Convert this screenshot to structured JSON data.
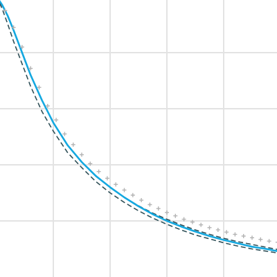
{
  "chart_data": {
    "type": "line",
    "title": "",
    "xlabel": "",
    "ylabel": "",
    "grid": true,
    "xlim": [
      0,
      5
    ],
    "ylim": [
      0,
      5
    ],
    "colors": {
      "grid": "#e3e3e3",
      "model": "#14a8e0",
      "bounds": "#2f4f57",
      "observed": "#b3b3b3"
    },
    "series": [
      {
        "role": "upper-bound",
        "style": "dashed",
        "x": [
          0.0,
          0.15,
          0.3,
          0.5,
          0.75,
          1.0,
          1.25,
          1.5,
          1.75,
          2.0,
          2.25,
          2.5,
          2.75,
          3.0,
          3.25,
          3.5,
          3.75,
          4.0,
          4.25,
          4.5,
          4.75,
          5.0
        ],
        "y": [
          5.0,
          4.75,
          4.4,
          3.85,
          3.25,
          2.75,
          2.35,
          2.05,
          1.8,
          1.6,
          1.42,
          1.27,
          1.14,
          1.03,
          0.93,
          0.84,
          0.76,
          0.69,
          0.63,
          0.58,
          0.53,
          0.48
        ]
      },
      {
        "role": "model",
        "style": "solid",
        "x": [
          0.0,
          0.1,
          0.2,
          0.3,
          0.45,
          0.6,
          0.8,
          1.0,
          1.25,
          1.5,
          1.75,
          2.0,
          2.25,
          2.5,
          2.75,
          3.0,
          3.25,
          3.5,
          3.75,
          4.0,
          4.25,
          4.5,
          4.75,
          5.0
        ],
        "y": [
          5.0,
          4.85,
          4.65,
          4.4,
          4.0,
          3.6,
          3.15,
          2.75,
          2.35,
          2.05,
          1.8,
          1.6,
          1.42,
          1.26,
          1.12,
          1.0,
          0.9,
          0.81,
          0.73,
          0.66,
          0.6,
          0.54,
          0.5,
          0.45
        ]
      },
      {
        "role": "lower-bound",
        "style": "dashed",
        "x": [
          0.0,
          0.1,
          0.2,
          0.3,
          0.45,
          0.6,
          0.8,
          1.0,
          1.25,
          1.5,
          1.75,
          2.0,
          2.25,
          2.5,
          2.75,
          3.0,
          3.25,
          3.5,
          3.75,
          4.0,
          4.25,
          4.5,
          4.75,
          5.0
        ],
        "y": [
          5.0,
          4.78,
          4.5,
          4.2,
          3.8,
          3.4,
          2.95,
          2.6,
          2.22,
          1.95,
          1.7,
          1.5,
          1.33,
          1.18,
          1.05,
          0.94,
          0.84,
          0.75,
          0.68,
          0.61,
          0.55,
          0.5,
          0.46,
          0.42
        ]
      },
      {
        "role": "observed",
        "style": "markers",
        "x": [
          0.0,
          0.15,
          0.3,
          0.45,
          0.6,
          0.75,
          0.9,
          1.05,
          1.2,
          1.35,
          1.5,
          1.65,
          1.8,
          1.95,
          2.1,
          2.25,
          2.4,
          2.55,
          2.7,
          2.85,
          3.0,
          3.15,
          3.3,
          3.45,
          3.6,
          3.75,
          3.9,
          4.05,
          4.2,
          4.35,
          4.5,
          4.65,
          4.8,
          4.95
        ],
        "y": [
          5.0,
          4.75,
          4.45,
          4.1,
          3.72,
          3.38,
          3.05,
          2.8,
          2.55,
          2.36,
          2.18,
          2.02,
          1.88,
          1.76,
          1.65,
          1.55,
          1.46,
          1.37,
          1.29,
          1.22,
          1.15,
          1.09,
          1.03,
          0.98,
          0.93,
          0.88,
          0.84,
          0.8,
          0.76,
          0.73,
          0.7,
          0.67,
          0.64,
          0.62
        ]
      }
    ]
  }
}
